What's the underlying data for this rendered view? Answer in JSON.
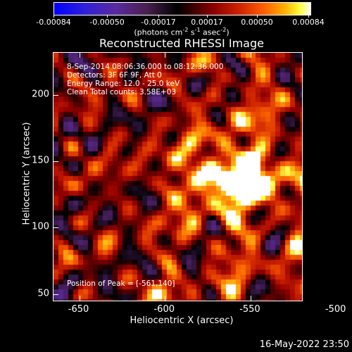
{
  "colorbar": {
    "labels": [
      "-0.00084",
      "-0.00050",
      "-0.00017",
      "0.00017",
      "0.00050",
      "0.00084"
    ],
    "unit_prefix": "(photons cm",
    "unit_exp1": "-2",
    "unit_mid": " s",
    "unit_exp2": "-1",
    "unit_mid2": " asec",
    "unit_exp3": "-2",
    "unit_suffix": ")"
  },
  "title": "Reconstructed RHESSI Image",
  "info_lines": [
    "8-Sep-2014 08:06:36.000 to 08:12:36.000",
    "Detectors: 3F 6F 9F, Att 0",
    "Energy Range: 12.0 - 25.0 keV",
    "Clean     Total counts: 3.58E+03"
  ],
  "peak_text": "Position of Peak = [-561,140]",
  "x_axis": {
    "label": "Heliocentric X (arcsec)",
    "ticks": [
      "-650",
      "-600",
      "-550",
      "-500"
    ],
    "range": [
      -665,
      -520
    ]
  },
  "y_axis": {
    "label": "Heliocentric Y (arcsec)",
    "ticks": [
      "50",
      "100",
      "150",
      "200"
    ],
    "range": [
      45,
      232
    ]
  },
  "timestamp": "16-May-2022 23:50",
  "peak": {
    "x": -561,
    "y": 140
  }
}
